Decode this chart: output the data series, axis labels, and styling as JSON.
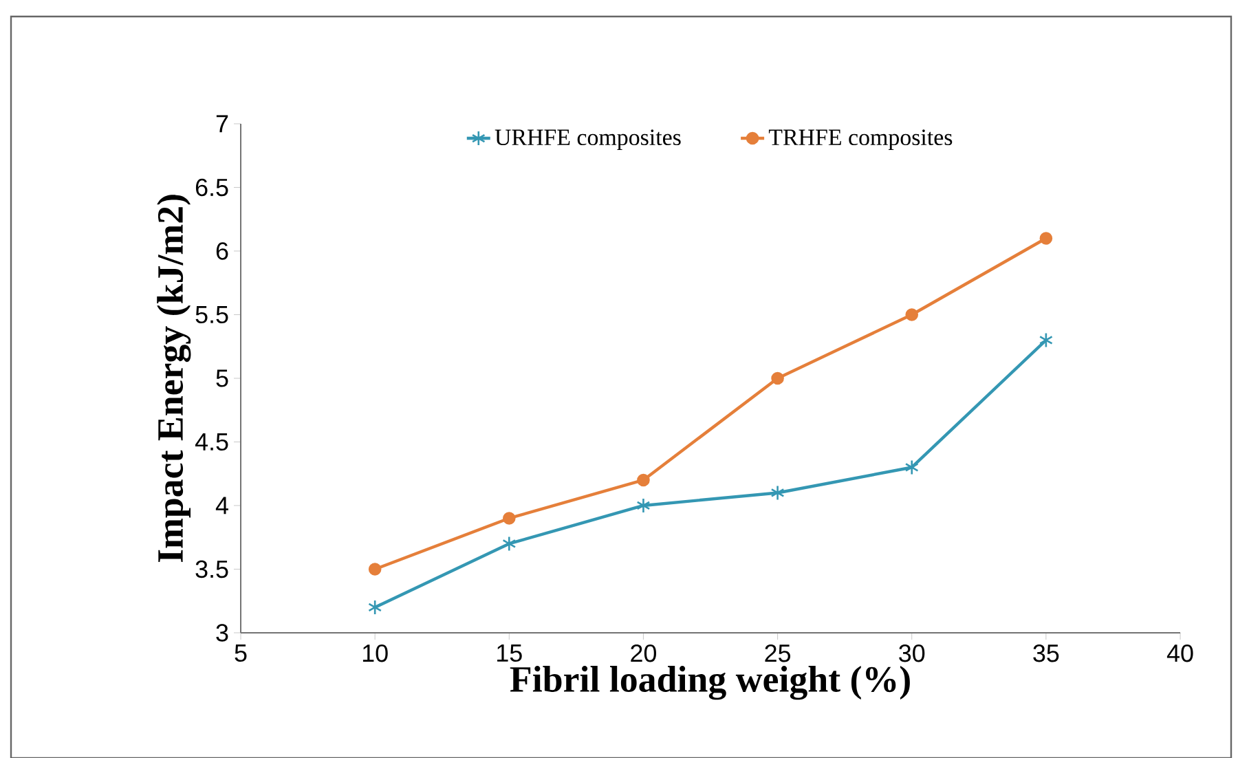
{
  "chart_data": {
    "type": "line",
    "xlabel": "Fibril loading weight (%)",
    "ylabel": "Impact Energy (kJ/m2)",
    "x": [
      10,
      15,
      20,
      25,
      30,
      35
    ],
    "series": [
      {
        "name": "URHFE composites",
        "color": "#3497b3",
        "marker": "cross",
        "values": [
          3.2,
          3.7,
          4.0,
          4.1,
          4.3,
          5.3
        ]
      },
      {
        "name": "TRHFE composites",
        "color": "#e57f3a",
        "marker": "circle",
        "values": [
          3.5,
          3.9,
          4.2,
          5.0,
          5.5,
          6.1
        ]
      }
    ],
    "xlim": [
      5,
      40
    ],
    "xticks": [
      5,
      10,
      15,
      20,
      25,
      30,
      35,
      40
    ],
    "ylim": [
      3,
      7
    ],
    "yticks": [
      3,
      3.5,
      4,
      4.5,
      5,
      5.5,
      6,
      6.5,
      7
    ],
    "grid": false,
    "legend": "top",
    "line_style": "solid"
  }
}
